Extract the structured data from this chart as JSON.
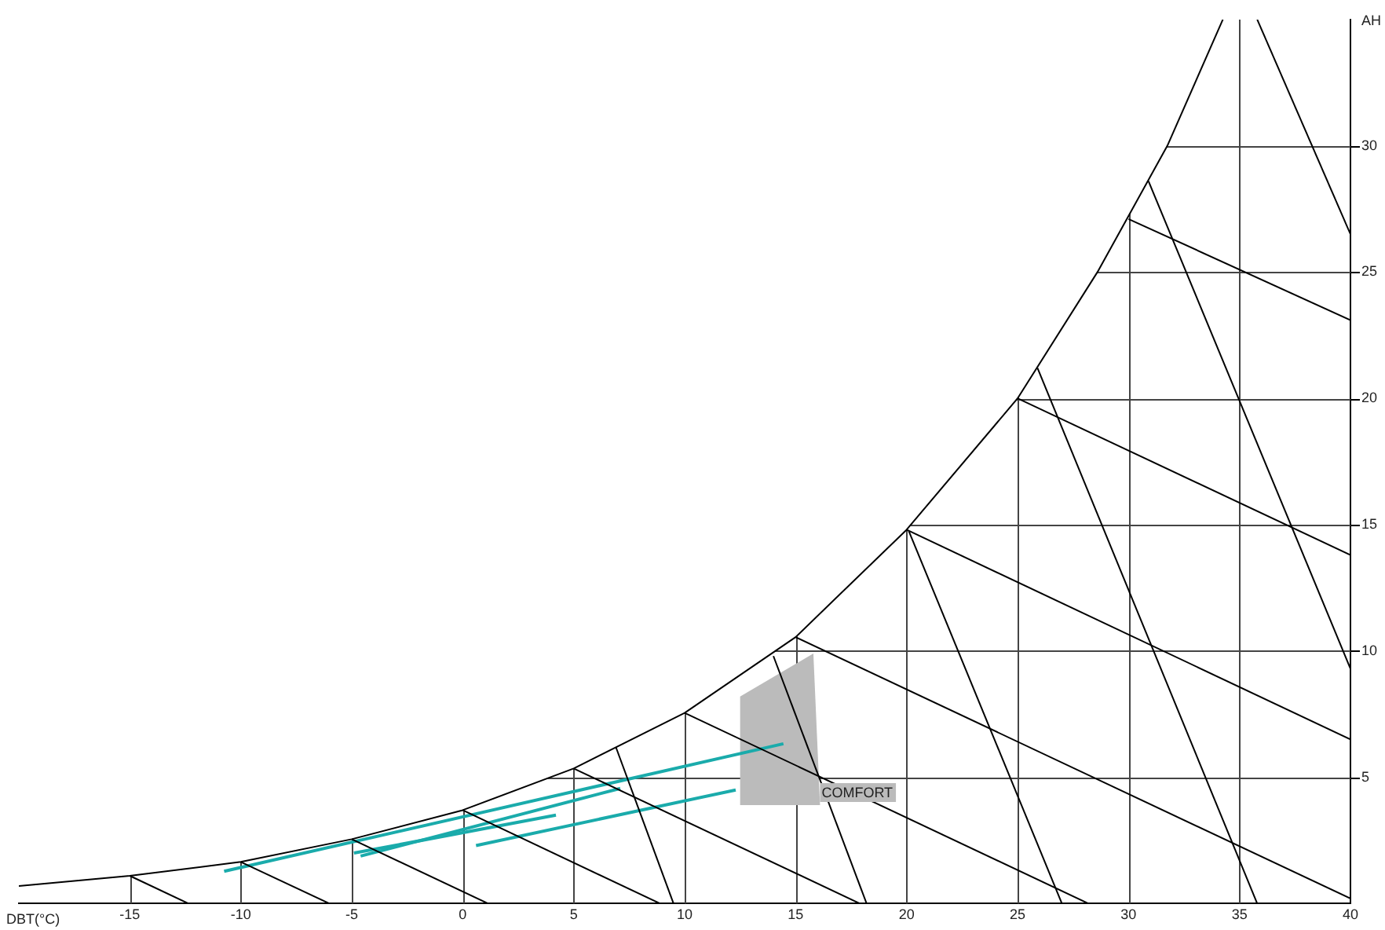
{
  "chart_data": {
    "type": "line",
    "xlabel": "DBT(°C)",
    "ylabel": "AH",
    "xlim": [
      -20,
      40
    ],
    "ylim": [
      0,
      35
    ],
    "xticks": [
      -15,
      -10,
      -5,
      0,
      5,
      10,
      15,
      20,
      25,
      30,
      35,
      40
    ],
    "yticks": [
      5,
      10,
      15,
      20,
      25,
      30
    ],
    "grid": true,
    "legend": false,
    "marker": "none",
    "series": [
      {
        "color": "#000000",
        "x": [
          -20,
          -15,
          -10,
          -5,
          0,
          5,
          10,
          15,
          20,
          25,
          28.6,
          31.75,
          34.25
        ],
        "values": [
          0.7,
          1.1,
          1.65,
          2.55,
          3.7,
          5.35,
          7.55,
          10.55,
          14.8,
          20,
          25,
          30,
          35
        ]
      },
      {
        "type": "line",
        "color": "#000000",
        "x": [
          -15,
          -12.35
        ],
        "values": [
          1.1,
          0
        ]
      },
      {
        "type": "line",
        "color": "#000000",
        "x": [
          -10,
          -6
        ],
        "values": [
          1.65,
          0
        ]
      },
      {
        "type": "line",
        "color": "#000000",
        "x": [
          -5,
          1.15
        ],
        "values": [
          2.55,
          0
        ]
      },
      {
        "type": "line",
        "color": "#000000",
        "x": [
          0,
          8.9
        ],
        "values": [
          3.7,
          0
        ]
      },
      {
        "type": "line",
        "color": "#000000",
        "x": [
          5,
          17.9
        ],
        "values": [
          5.35,
          0
        ]
      },
      {
        "type": "line",
        "color": "#000000",
        "x": [
          10,
          28.2
        ],
        "values": [
          7.55,
          0
        ]
      },
      {
        "type": "line",
        "color": "#000000",
        "x": [
          15,
          40
        ],
        "values": [
          10.55,
          0.2
        ]
      },
      {
        "type": "line",
        "color": "#000000",
        "x": [
          20,
          40
        ],
        "values": [
          14.8,
          6.5
        ]
      },
      {
        "type": "line",
        "color": "#000000",
        "x": [
          25,
          40
        ],
        "values": [
          20,
          13.8
        ]
      },
      {
        "type": "line",
        "color": "#000000",
        "x": [
          30,
          40
        ],
        "values": [
          27.1,
          23.1
        ]
      },
      {
        "type": "line",
        "color": "#000000",
        "x": [
          6.9,
          9.5
        ],
        "values": [
          6.2,
          0
        ]
      },
      {
        "type": "line",
        "color": "#000000",
        "x": [
          14,
          18.2
        ],
        "values": [
          9.8,
          0
        ]
      },
      {
        "type": "line",
        "color": "#000000",
        "x": [
          20.1,
          27
        ],
        "values": [
          14.75,
          0
        ]
      },
      {
        "type": "line",
        "color": "#000000",
        "x": [
          25.9,
          35.8
        ],
        "values": [
          21.2,
          0
        ]
      },
      {
        "type": "line",
        "color": "#000000",
        "x": [
          30.9,
          40
        ],
        "values": [
          28.6,
          9.3
        ]
      },
      {
        "type": "line",
        "color": "#000000",
        "x": [
          35.8,
          40
        ],
        "values": [
          35,
          26.5
        ]
      },
      {
        "type": "area",
        "name": "COMFORT",
        "color": "#bbbbbb",
        "x": [
          12.5,
          15.8,
          16.1,
          12.5
        ],
        "values": [
          8.2,
          9.9,
          3.9,
          3.9
        ]
      },
      {
        "type": "line",
        "color": "#1aabab",
        "x": [
          -10.75,
          14.45
        ],
        "values": [
          1.28,
          6.33
        ]
      },
      {
        "type": "line",
        "color": "#1aabab",
        "x": [
          -4.9,
          4.2
        ],
        "values": [
          2.0,
          3.5
        ]
      },
      {
        "type": "line",
        "color": "#1aabab",
        "x": [
          -4.6,
          7.1
        ],
        "values": [
          1.88,
          4.56
        ]
      },
      {
        "type": "line",
        "color": "#1aabab",
        "x": [
          0.6,
          12.3
        ],
        "values": [
          2.3,
          4.5
        ]
      }
    ]
  }
}
